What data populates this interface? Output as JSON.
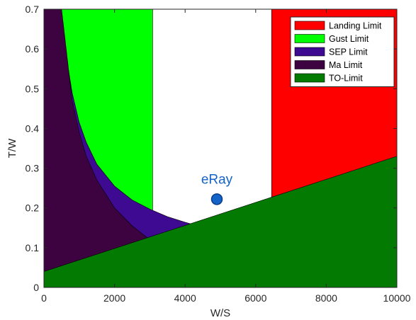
{
  "chart_data": {
    "type": "area",
    "xlabel": "W/S",
    "ylabel": "T/W",
    "xlim": [
      0,
      10000
    ],
    "ylim": [
      0,
      0.7
    ],
    "x_ticks": [
      0,
      2000,
      4000,
      6000,
      8000,
      10000
    ],
    "x_tick_labels": [
      "0",
      "2000",
      "4000",
      "6000",
      "8000",
      "10000"
    ],
    "y_ticks": [
      0,
      0.1,
      0.2,
      0.3,
      0.4,
      0.5,
      0.6,
      0.7
    ],
    "y_tick_labels": [
      "0",
      "0.1",
      "0.2",
      "0.3",
      "0.4",
      "0.5",
      "0.6",
      "0.7"
    ],
    "grid": false,
    "legend_position": "top-right",
    "series": [
      {
        "name": "Landing Limit",
        "kind": "vertical_limit",
        "x_from": 6450,
        "color": "#ff0000"
      },
      {
        "name": "Gust Limit",
        "kind": "vertical_limit",
        "x_to": 3080,
        "color": "#00ff00"
      },
      {
        "name": "SEP Limit",
        "kind": "curve_limit",
        "color": "#3d0a91",
        "x": [
          480,
          600,
          800,
          1000,
          1200,
          1500,
          2000,
          2500,
          3000,
          3500,
          4000,
          4200
        ],
        "values": [
          0.7,
          0.6,
          0.49,
          0.415,
          0.365,
          0.31,
          0.255,
          0.22,
          0.197,
          0.178,
          0.164,
          0.159
        ]
      },
      {
        "name": "Ma Limit",
        "kind": "curve_limit",
        "color": "#3d0340",
        "x": [
          0,
          500,
          800,
          1000,
          1200,
          1500,
          2000,
          2500,
          3000
        ],
        "values": [
          0.7,
          0.7,
          0.47,
          0.39,
          0.33,
          0.27,
          0.2,
          0.155,
          0.12
        ]
      },
      {
        "name": "TO-Limit",
        "kind": "line_limit",
        "color": "#037b03",
        "x": [
          0,
          10000
        ],
        "values": [
          0.04,
          0.33
        ]
      }
    ],
    "annotations": [
      {
        "label": "eRay",
        "x": 4900,
        "y": 0.222,
        "color": "#1464c8"
      }
    ]
  }
}
